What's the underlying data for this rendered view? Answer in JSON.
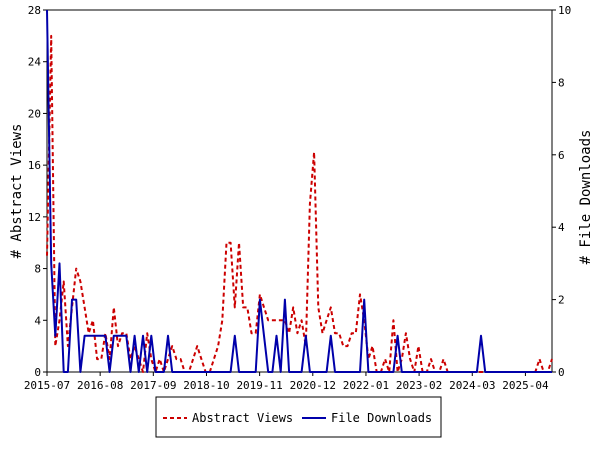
{
  "chart_data": {
    "type": "line",
    "x_axis": {
      "tick_labels": [
        "2015-07",
        "2016-08",
        "2017-09",
        "2018-10",
        "2019-11",
        "2020-12",
        "2022-01",
        "2023-02",
        "2024-03",
        "2025-04"
      ]
    },
    "y_left": {
      "label": "# Abstract Views",
      "range": [
        0,
        28
      ],
      "ticks": [
        0,
        4,
        8,
        12,
        16,
        20,
        24,
        28
      ]
    },
    "y_right": {
      "label": "# File Downloads",
      "range": [
        0,
        10
      ],
      "ticks": [
        0,
        2,
        4,
        6,
        8,
        10
      ]
    },
    "grid": false,
    "legend": {
      "placement": "bottom-center"
    },
    "series": [
      {
        "name": "Abstract Views",
        "axis": "left",
        "color": "#cc0000",
        "style": "dashed",
        "points": [
          [
            0,
            9
          ],
          [
            1,
            26
          ],
          [
            2,
            2
          ],
          [
            3,
            4
          ],
          [
            4,
            7
          ],
          [
            5,
            2
          ],
          [
            6,
            5
          ],
          [
            7,
            8
          ],
          [
            8,
            7
          ],
          [
            9,
            5
          ],
          [
            10,
            3
          ],
          [
            11,
            4
          ],
          [
            12,
            1
          ],
          [
            13,
            1
          ],
          [
            14,
            3
          ],
          [
            15,
            1
          ],
          [
            16,
            5
          ],
          [
            17,
            2
          ],
          [
            18,
            3
          ],
          [
            19,
            3
          ],
          [
            20,
            1
          ],
          [
            21,
            2
          ],
          [
            22,
            1
          ],
          [
            23,
            0
          ],
          [
            24,
            3
          ],
          [
            25,
            1
          ],
          [
            26,
            0
          ],
          [
            27,
            1
          ],
          [
            28,
            0
          ],
          [
            29,
            1
          ],
          [
            30,
            2
          ],
          [
            31,
            1
          ],
          [
            32,
            1
          ],
          [
            33,
            0
          ],
          [
            34,
            0
          ],
          [
            35,
            1
          ],
          [
            36,
            2
          ],
          [
            37,
            1
          ],
          [
            38,
            0
          ],
          [
            39,
            0
          ],
          [
            40,
            1
          ],
          [
            41,
            2
          ],
          [
            42,
            4
          ],
          [
            43,
            10
          ],
          [
            44,
            10
          ],
          [
            45,
            5
          ],
          [
            46,
            10
          ],
          [
            47,
            5
          ],
          [
            48,
            5
          ],
          [
            49,
            3
          ],
          [
            50,
            3
          ],
          [
            51,
            6
          ],
          [
            52,
            5
          ],
          [
            53,
            4
          ],
          [
            54,
            4
          ],
          [
            55,
            4
          ],
          [
            56,
            4
          ],
          [
            57,
            4
          ],
          [
            58,
            3
          ],
          [
            59,
            5
          ],
          [
            60,
            3
          ],
          [
            61,
            4
          ],
          [
            62,
            2
          ],
          [
            63,
            13
          ],
          [
            64,
            17
          ],
          [
            65,
            5
          ],
          [
            66,
            3
          ],
          [
            67,
            4
          ],
          [
            68,
            5
          ],
          [
            69,
            3
          ],
          [
            70,
            3
          ],
          [
            71,
            2
          ],
          [
            72,
            2
          ],
          [
            73,
            3
          ],
          [
            74,
            3
          ],
          [
            75,
            6
          ],
          [
            76,
            4
          ],
          [
            77,
            1
          ],
          [
            78,
            2
          ],
          [
            79,
            0
          ],
          [
            80,
            0
          ],
          [
            81,
            1
          ],
          [
            82,
            0
          ],
          [
            83,
            4
          ],
          [
            84,
            0
          ],
          [
            85,
            1
          ],
          [
            86,
            3
          ],
          [
            87,
            1
          ],
          [
            88,
            0
          ],
          [
            89,
            2
          ],
          [
            90,
            0
          ],
          [
            91,
            0
          ],
          [
            92,
            1
          ],
          [
            93,
            0
          ],
          [
            94,
            0
          ],
          [
            95,
            1
          ],
          [
            96,
            0
          ],
          [
            97,
            0
          ],
          [
            98,
            0
          ],
          [
            99,
            0
          ],
          [
            100,
            0
          ],
          [
            101,
            0
          ],
          [
            102,
            0
          ],
          [
            103,
            0
          ],
          [
            104,
            0
          ],
          [
            105,
            0
          ],
          [
            106,
            0
          ],
          [
            107,
            0
          ],
          [
            108,
            0
          ],
          [
            109,
            0
          ],
          [
            110,
            0
          ],
          [
            111,
            0
          ],
          [
            112,
            0
          ],
          [
            113,
            0
          ],
          [
            114,
            0
          ],
          [
            115,
            0
          ],
          [
            116,
            0
          ],
          [
            117,
            0
          ],
          [
            118,
            1
          ],
          [
            119,
            0
          ],
          [
            120,
            0
          ],
          [
            121,
            1
          ]
        ]
      },
      {
        "name": "File Downloads",
        "axis": "right",
        "color": "#0000aa",
        "style": "solid",
        "points": [
          [
            0,
            10
          ],
          [
            1,
            3
          ],
          [
            2,
            1
          ],
          [
            3,
            3
          ],
          [
            4,
            0
          ],
          [
            5,
            0
          ],
          [
            6,
            2
          ],
          [
            7,
            2
          ],
          [
            8,
            0
          ],
          [
            9,
            1
          ],
          [
            10,
            1
          ],
          [
            11,
            1
          ],
          [
            12,
            1
          ],
          [
            13,
            1
          ],
          [
            14,
            1
          ],
          [
            15,
            0
          ],
          [
            16,
            1
          ],
          [
            17,
            1
          ],
          [
            18,
            1
          ],
          [
            19,
            1
          ],
          [
            20,
            0
          ],
          [
            21,
            1
          ],
          [
            22,
            0
          ],
          [
            23,
            1
          ],
          [
            24,
            0
          ],
          [
            25,
            1
          ],
          [
            26,
            0
          ],
          [
            27,
            0
          ],
          [
            28,
            0
          ],
          [
            29,
            1
          ],
          [
            30,
            0
          ],
          [
            31,
            0
          ],
          [
            32,
            0
          ],
          [
            33,
            0
          ],
          [
            34,
            0
          ],
          [
            35,
            0
          ],
          [
            36,
            0
          ],
          [
            37,
            0
          ],
          [
            38,
            0
          ],
          [
            39,
            0
          ],
          [
            40,
            0
          ],
          [
            41,
            0
          ],
          [
            42,
            0
          ],
          [
            43,
            0
          ],
          [
            44,
            0
          ],
          [
            45,
            1
          ],
          [
            46,
            0
          ],
          [
            47,
            0
          ],
          [
            48,
            0
          ],
          [
            49,
            0
          ],
          [
            50,
            0
          ],
          [
            51,
            2
          ],
          [
            52,
            1
          ],
          [
            53,
            0
          ],
          [
            54,
            0
          ],
          [
            55,
            1
          ],
          [
            56,
            0
          ],
          [
            57,
            2
          ],
          [
            58,
            0
          ],
          [
            59,
            0
          ],
          [
            60,
            0
          ],
          [
            61,
            0
          ],
          [
            62,
            1
          ],
          [
            63,
            0
          ],
          [
            64,
            0
          ],
          [
            65,
            0
          ],
          [
            66,
            0
          ],
          [
            67,
            0
          ],
          [
            68,
            1
          ],
          [
            69,
            0
          ],
          [
            70,
            0
          ],
          [
            71,
            0
          ],
          [
            72,
            0
          ],
          [
            73,
            0
          ],
          [
            74,
            0
          ],
          [
            75,
            0
          ],
          [
            76,
            2
          ],
          [
            77,
            0
          ],
          [
            78,
            0
          ],
          [
            79,
            0
          ],
          [
            80,
            0
          ],
          [
            81,
            0
          ],
          [
            82,
            0
          ],
          [
            83,
            0
          ],
          [
            84,
            1
          ],
          [
            85,
            0
          ],
          [
            86,
            0
          ],
          [
            87,
            0
          ],
          [
            88,
            0
          ],
          [
            89,
            0
          ],
          [
            90,
            0
          ],
          [
            91,
            0
          ],
          [
            92,
            0
          ],
          [
            93,
            0
          ],
          [
            94,
            0
          ],
          [
            95,
            0
          ],
          [
            96,
            0
          ],
          [
            97,
            0
          ],
          [
            98,
            0
          ],
          [
            99,
            0
          ],
          [
            100,
            0
          ],
          [
            101,
            0
          ],
          [
            102,
            0
          ],
          [
            103,
            0
          ],
          [
            104,
            1
          ],
          [
            105,
            0
          ],
          [
            106,
            0
          ],
          [
            107,
            0
          ],
          [
            108,
            0
          ],
          [
            109,
            0
          ],
          [
            110,
            0
          ],
          [
            111,
            0
          ],
          [
            112,
            0
          ],
          [
            113,
            0
          ],
          [
            114,
            0
          ],
          [
            115,
            0
          ],
          [
            116,
            0
          ],
          [
            117,
            0
          ],
          [
            118,
            0
          ],
          [
            119,
            0
          ],
          [
            120,
            0
          ],
          [
            121,
            0
          ]
        ]
      }
    ]
  }
}
